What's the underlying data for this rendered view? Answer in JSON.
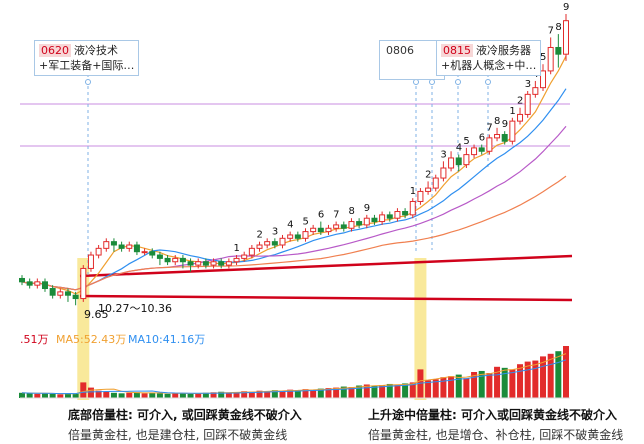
{
  "colors": {
    "up": "#e22b2b",
    "down": "#1a8b3a",
    "ma5": "#f0a030",
    "ma10": "#2f8ff0",
    "ma20": "#b85ac8",
    "ma_long": "#f08050",
    "gold_line": "#d0021b",
    "guide_purple": "#c98ce0",
    "highlight": "#f7e27a"
  },
  "callouts": [
    {
      "code": "0620",
      "lines": [
        "液冷技术",
        "+军工装备+国际…"
      ]
    },
    {
      "code": "0806",
      "lines": []
    },
    {
      "code": "0815",
      "lines": [
        "液冷服务器",
        "+机器人概念+中…"
      ]
    }
  ],
  "volume_legend": {
    "first": ".51万",
    "ma5": "MA5:52.43万",
    "ma10": "MA10:41.16万"
  },
  "annotations": {
    "range_label": "10.27～10.36",
    "low_label": "9.65"
  },
  "captions": [
    {
      "title": "底部倍量柱: 可介入, 或回踩黄金线不破介入",
      "subtitle": "倍量黄金柱, 也是建仓柱, 回踩不破黄金线"
    },
    {
      "title": "上升途中倍量柱: 可介入或回踩黄金线不破介入",
      "subtitle": "倍量黄金柱, 也是增仓、补仓柱, 回踩不破黄金线"
    }
  ],
  "chart_data": {
    "type": "candlestick",
    "price_scale_note": "relative 0-100 scale, no price axis shown",
    "candles": [
      {
        "o": 23,
        "c": 22,
        "h": 24,
        "l": 21
      },
      {
        "o": 22,
        "c": 21,
        "h": 23,
        "l": 20
      },
      {
        "o": 21,
        "c": 22,
        "h": 23,
        "l": 20
      },
      {
        "o": 22,
        "c": 20,
        "h": 23,
        "l": 19
      },
      {
        "o": 20,
        "c": 18,
        "h": 21,
        "l": 17
      },
      {
        "o": 18,
        "c": 19,
        "h": 20,
        "l": 17
      },
      {
        "o": 19,
        "c": 18,
        "h": 20,
        "l": 16
      },
      {
        "o": 18,
        "c": 17,
        "h": 19,
        "l": 15
      },
      {
        "o": 17,
        "c": 26,
        "h": 27,
        "l": 16
      },
      {
        "o": 26,
        "c": 30,
        "h": 31,
        "l": 25
      },
      {
        "o": 30,
        "c": 32,
        "h": 33,
        "l": 29
      },
      {
        "o": 32,
        "c": 34,
        "h": 35,
        "l": 31
      },
      {
        "o": 34,
        "c": 33,
        "h": 35,
        "l": 31
      },
      {
        "o": 33,
        "c": 32,
        "h": 34,
        "l": 31
      },
      {
        "o": 32,
        "c": 33,
        "h": 34,
        "l": 31
      },
      {
        "o": 33,
        "c": 31,
        "h": 34,
        "l": 30
      },
      {
        "o": 31,
        "c": 31,
        "h": 32,
        "l": 30
      },
      {
        "o": 31,
        "c": 30,
        "h": 32,
        "l": 29
      },
      {
        "o": 30,
        "c": 29,
        "h": 31,
        "l": 27
      },
      {
        "o": 29,
        "c": 28,
        "h": 30,
        "l": 27
      },
      {
        "o": 28,
        "c": 29,
        "h": 30,
        "l": 27
      },
      {
        "o": 29,
        "c": 28,
        "h": 30,
        "l": 26
      },
      {
        "o": 28,
        "c": 27,
        "h": 29,
        "l": 25
      },
      {
        "o": 27,
        "c": 28,
        "h": 29,
        "l": 26
      },
      {
        "o": 28,
        "c": 27,
        "h": 29,
        "l": 26
      },
      {
        "o": 27,
        "c": 28,
        "h": 29,
        "l": 26
      },
      {
        "o": 28,
        "c": 27,
        "h": 29,
        "l": 26
      },
      {
        "o": 27,
        "c": 28,
        "h": 29,
        "l": 26
      },
      {
        "o": 28,
        "c": 29,
        "h": 30,
        "l": 27
      },
      {
        "o": 29,
        "c": 30,
        "h": 31,
        "l": 28
      },
      {
        "o": 30,
        "c": 32,
        "h": 33,
        "l": 29
      },
      {
        "o": 32,
        "c": 33,
        "h": 34,
        "l": 31
      },
      {
        "o": 33,
        "c": 34,
        "h": 35,
        "l": 32
      },
      {
        "o": 34,
        "c": 33,
        "h": 35,
        "l": 32
      },
      {
        "o": 33,
        "c": 35,
        "h": 36,
        "l": 32
      },
      {
        "o": 35,
        "c": 36,
        "h": 37,
        "l": 34
      },
      {
        "o": 36,
        "c": 35,
        "h": 37,
        "l": 34
      },
      {
        "o": 35,
        "c": 37,
        "h": 38,
        "l": 34
      },
      {
        "o": 37,
        "c": 38,
        "h": 39,
        "l": 36
      },
      {
        "o": 38,
        "c": 37,
        "h": 40,
        "l": 36
      },
      {
        "o": 37,
        "c": 38,
        "h": 39,
        "l": 36
      },
      {
        "o": 38,
        "c": 39,
        "h": 40,
        "l": 37
      },
      {
        "o": 39,
        "c": 38,
        "h": 40,
        "l": 37
      },
      {
        "o": 38,
        "c": 40,
        "h": 41,
        "l": 37
      },
      {
        "o": 40,
        "c": 39,
        "h": 41,
        "l": 38
      },
      {
        "o": 39,
        "c": 41,
        "h": 42,
        "l": 38
      },
      {
        "o": 41,
        "c": 40,
        "h": 42,
        "l": 39
      },
      {
        "o": 40,
        "c": 42,
        "h": 43,
        "l": 39
      },
      {
        "o": 42,
        "c": 41,
        "h": 43,
        "l": 40
      },
      {
        "o": 41,
        "c": 43,
        "h": 44,
        "l": 40
      },
      {
        "o": 43,
        "c": 42,
        "h": 44,
        "l": 41
      },
      {
        "o": 42,
        "c": 46,
        "h": 47,
        "l": 41
      },
      {
        "o": 46,
        "c": 49,
        "h": 50,
        "l": 45
      },
      {
        "o": 49,
        "c": 50,
        "h": 52,
        "l": 48
      },
      {
        "o": 50,
        "c": 53,
        "h": 54,
        "l": 49
      },
      {
        "o": 53,
        "c": 56,
        "h": 58,
        "l": 52
      },
      {
        "o": 56,
        "c": 59,
        "h": 61,
        "l": 55
      },
      {
        "o": 59,
        "c": 57,
        "h": 60,
        "l": 55
      },
      {
        "o": 57,
        "c": 60,
        "h": 62,
        "l": 56
      },
      {
        "o": 60,
        "c": 62,
        "h": 63,
        "l": 59
      },
      {
        "o": 62,
        "c": 61,
        "h": 63,
        "l": 60
      },
      {
        "o": 61,
        "c": 65,
        "h": 66,
        "l": 60
      },
      {
        "o": 65,
        "c": 66,
        "h": 68,
        "l": 64
      },
      {
        "o": 66,
        "c": 64,
        "h": 67,
        "l": 63
      },
      {
        "o": 64,
        "c": 70,
        "h": 71,
        "l": 63
      },
      {
        "o": 70,
        "c": 72,
        "h": 74,
        "l": 69
      },
      {
        "o": 72,
        "c": 78,
        "h": 79,
        "l": 71
      },
      {
        "o": 78,
        "c": 80,
        "h": 82,
        "l": 77
      },
      {
        "o": 80,
        "c": 85,
        "h": 87,
        "l": 79
      },
      {
        "o": 85,
        "c": 92,
        "h": 95,
        "l": 84
      },
      {
        "o": 92,
        "c": 90,
        "h": 96,
        "l": 86
      },
      {
        "o": 90,
        "c": 100,
        "h": 102,
        "l": 88
      }
    ],
    "volume_heights": [
      10,
      9,
      8,
      9,
      8,
      7,
      9,
      8,
      30,
      20,
      14,
      12,
      10,
      9,
      10,
      11,
      9,
      10,
      9,
      8,
      9,
      9,
      8,
      9,
      10,
      11,
      12,
      10,
      11,
      13,
      12,
      14,
      13,
      15,
      14,
      16,
      15,
      17,
      16,
      18,
      19,
      20,
      22,
      21,
      24,
      26,
      24,
      25,
      27,
      26,
      28,
      30,
      55,
      34,
      36,
      40,
      42,
      45,
      38,
      50,
      52,
      48,
      60,
      58,
      55,
      65,
      70,
      72,
      80,
      85,
      90,
      100
    ]
  }
}
